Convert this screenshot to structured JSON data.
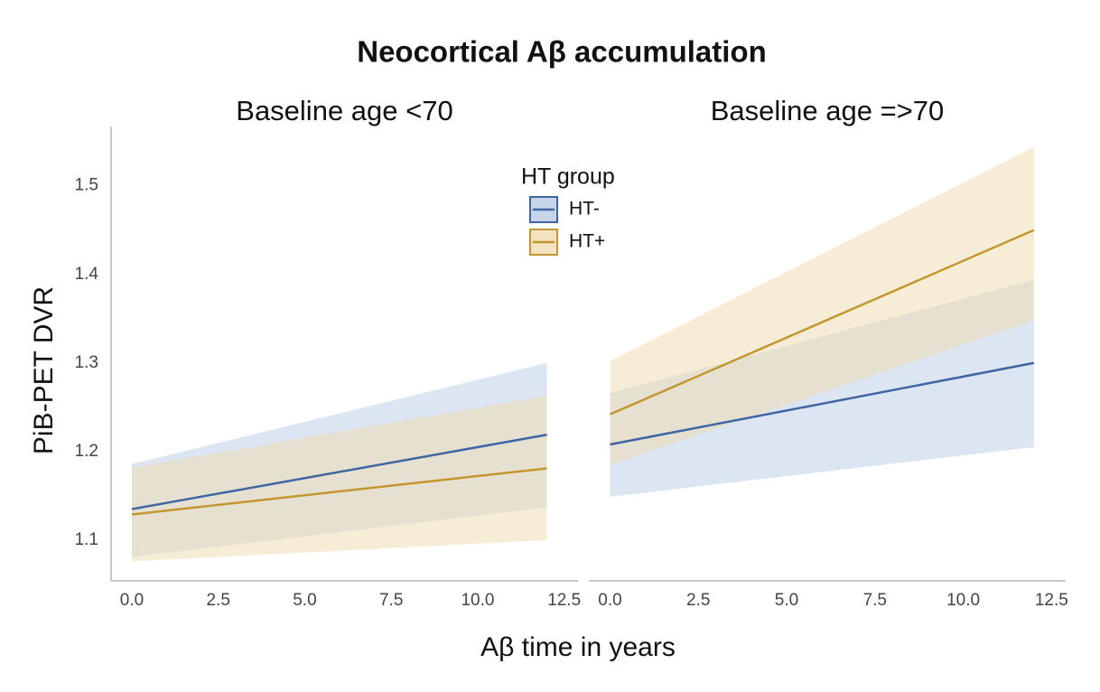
{
  "title": "Neocortical Aβ accumulation",
  "x_label": "Aβ time in years",
  "y_label": "PiB-PET DVR",
  "legend": {
    "title": "HT group"
  },
  "chart_data": [
    {
      "type": "line",
      "title": "Baseline age <70",
      "x": [
        0,
        12
      ],
      "xlim": [
        -0.6,
        12.9
      ],
      "ylim": [
        1.054,
        1.567
      ],
      "xticks": [
        {
          "value": 0,
          "label": "0.0"
        },
        2.5,
        {
          "value": 5,
          "label": "5.0"
        },
        7.5,
        {
          "value": 10,
          "label": "10.0"
        },
        12.5
      ],
      "yticks": [
        1.1,
        1.2,
        1.3,
        1.4,
        1.5
      ],
      "series": [
        {
          "name": "HT-",
          "color": "#3f66a3",
          "band_color": "#b9cbe6",
          "values": [
            1.135,
            1.219
          ],
          "lower": [
            1.081,
            1.137
          ],
          "upper": [
            1.186,
            1.3
          ]
        },
        {
          "name": "HT+",
          "color": "#c3962f",
          "band_color": "#f0dcb0",
          "values": [
            1.129,
            1.181
          ],
          "lower": [
            1.076,
            1.1
          ],
          "upper": [
            1.182,
            1.263
          ]
        }
      ]
    },
    {
      "type": "line",
      "title": "Baseline age =>70",
      "x": [
        0,
        12
      ],
      "xlim": [
        -0.6,
        12.9
      ],
      "ylim": [
        1.054,
        1.567
      ],
      "xticks": [
        {
          "value": 0,
          "label": "0.0"
        },
        2.5,
        {
          "value": 5,
          "label": "5.0"
        },
        7.5,
        {
          "value": 10,
          "label": "10.0"
        },
        12.5
      ],
      "series": [
        {
          "name": "HT-",
          "color": "#3f66a3",
          "band_color": "#b9cbe6",
          "values": [
            1.208,
            1.3
          ],
          "lower": [
            1.149,
            1.205
          ],
          "upper": [
            1.266,
            1.394
          ]
        },
        {
          "name": "HT+",
          "color": "#c3962f",
          "band_color": "#f0dcb0",
          "values": [
            1.242,
            1.45
          ],
          "lower": [
            1.185,
            1.348
          ],
          "upper": [
            1.302,
            1.544
          ]
        }
      ]
    }
  ]
}
